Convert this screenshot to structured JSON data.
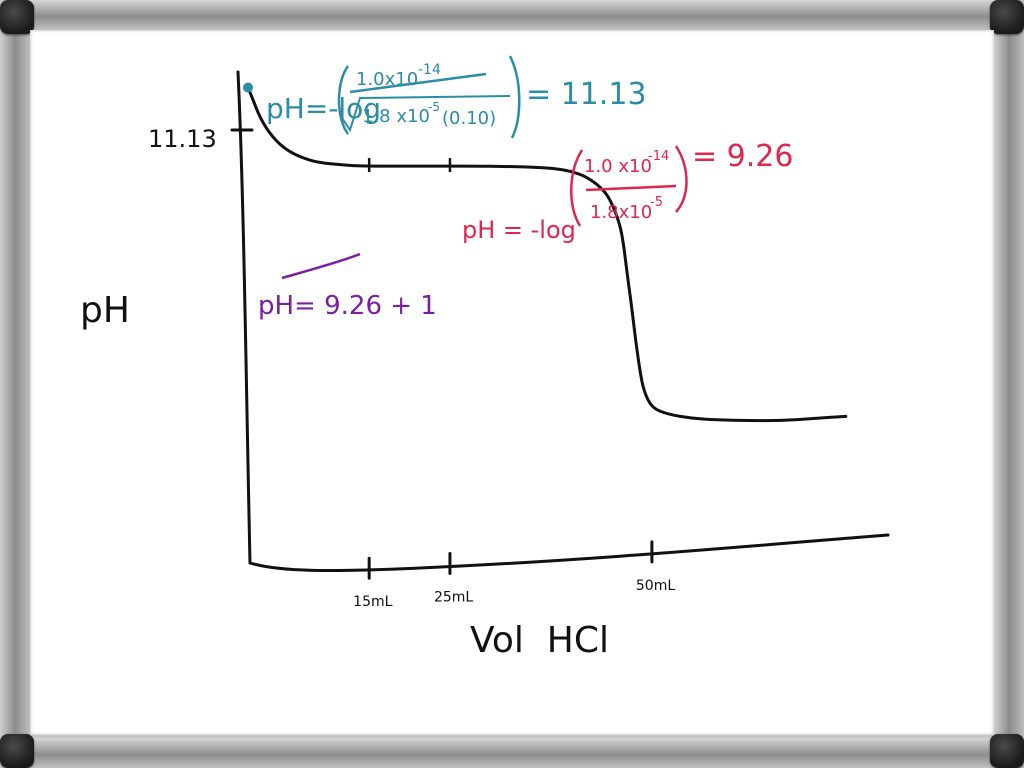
{
  "colors": {
    "ink": "#111111",
    "teal": "#2b8ca6",
    "red": "#e0264d",
    "purple": "#7a1fa0"
  },
  "chart_data": {
    "type": "line",
    "xlabel": "Vol  HCl",
    "ylabel": "pH",
    "y_tick_label": "11.13",
    "x_tick_labels": [
      "15mL",
      "25mL",
      "50mL"
    ],
    "x_ticks": [
      15,
      25,
      50
    ],
    "xlim": [
      0,
      77
    ],
    "ylim": [
      0,
      12.5
    ],
    "series": [
      {
        "x": [
          0,
          0.5,
          1.5,
          3,
          5,
          8,
          11,
          13,
          15,
          18,
          20,
          23,
          25,
          28,
          32,
          35,
          38,
          40,
          42,
          44,
          45,
          46,
          46.5,
          47,
          47.5,
          48,
          48.5,
          49,
          50,
          52,
          55,
          58,
          62,
          66,
          70,
          74
        ],
        "y": [
          11.13,
          10.9,
          10.4,
          9.95,
          9.6,
          9.36,
          9.3,
          9.27,
          9.26,
          9.26,
          9.26,
          9.26,
          9.26,
          9.26,
          9.25,
          9.24,
          9.2,
          9.14,
          9.0,
          8.7,
          8.4,
          7.9,
          7.4,
          6.6,
          5.9,
          5.1,
          4.4,
          3.9,
          3.5,
          3.35,
          3.25,
          3.22,
          3.2,
          3.2,
          3.25,
          3.3
        ]
      }
    ],
    "annotations": {
      "initial_ph": "pH = -log ( 1.0x10^-14 / √1.8x10^-5 (0.10) ) = 11.13",
      "half_equivalence_ph": "pH = -log ( 1.0x10^-14 / 1.8x10^-5 ) = 9.26",
      "buffer_ph": "pH = 9.26 + 1"
    }
  }
}
